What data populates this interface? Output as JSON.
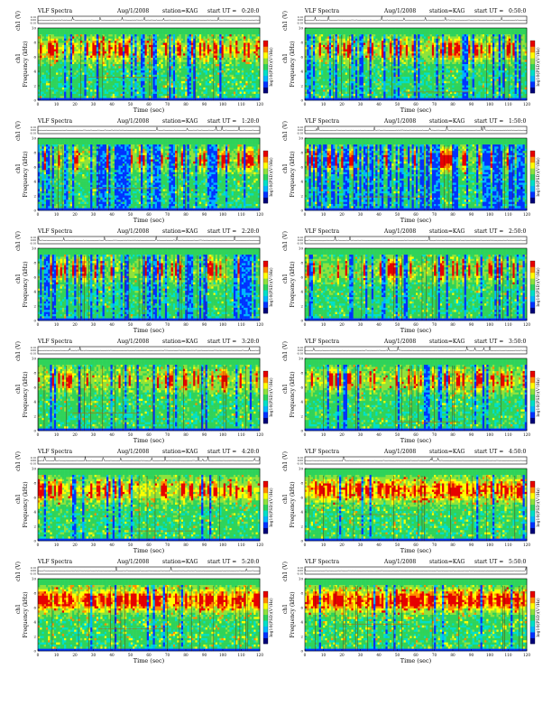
{
  "figure": {
    "type": "spectrogram-grid",
    "common": {
      "plot_title": "VLF Spectra",
      "date_label": "Aug/1/2008",
      "station_label": "station=KAG",
      "start_prefix": "start UT =",
      "xlabel": "Time (sec)",
      "ylabel_freq": "Frequency (kHz)",
      "ylabel_wave": "ch1 (V)",
      "ylabel_spec_ch": "ch1",
      "colorbar_label": "log10(PSD)(V²/Hz)",
      "x_ticks": [
        "0",
        "10",
        "20",
        "30",
        "40",
        "50",
        "60",
        "70",
        "80",
        "90",
        "100",
        "110",
        "120"
      ],
      "freq_ticks": [
        "0",
        "2",
        "4",
        "6",
        "8",
        "10"
      ],
      "wave_ticks": [
        "0.10",
        "0.00",
        "-0.10"
      ],
      "xlim": [
        0,
        120
      ],
      "ylim_freq": [
        0,
        10
      ],
      "colorbar_range": [
        -6,
        -2
      ],
      "colormap": [
        "#00007a",
        "#0032ff",
        "#00b4ff",
        "#00e0c8",
        "#2fd35a",
        "#8ee23c",
        "#ffff00",
        "#ff8a00",
        "#e60000"
      ]
    },
    "panels": [
      {
        "start_ut": "0:20:0"
      },
      {
        "start_ut": "0:50:0"
      },
      {
        "start_ut": "1:20:0"
      },
      {
        "start_ut": "1:50:0"
      },
      {
        "start_ut": "2:20:0"
      },
      {
        "start_ut": "2:50:0"
      },
      {
        "start_ut": "3:20:0"
      },
      {
        "start_ut": "3:50:0"
      },
      {
        "start_ut": "4:20:0"
      },
      {
        "start_ut": "4:50:0"
      },
      {
        "start_ut": "5:20:0"
      },
      {
        "start_ut": "5:50:0"
      }
    ]
  },
  "chart_data": [
    {
      "type": "heatmap",
      "title": "VLF Spectra Aug/1/2008 station=KAG start UT =0:20:0",
      "xlabel": "Time (sec)",
      "ylabel": "Frequency (kHz)",
      "xlim": [
        0,
        120
      ],
      "ylim": [
        0,
        10
      ],
      "activity": 0.55,
      "quiet": 0.15
    },
    {
      "type": "heatmap",
      "title": "VLF Spectra Aug/1/2008 station=KAG start UT =0:50:0",
      "xlabel": "Time (sec)",
      "ylabel": "Frequency (kHz)",
      "xlim": [
        0,
        120
      ],
      "ylim": [
        0,
        10
      ],
      "activity": 0.45,
      "quiet": 0.2
    },
    {
      "type": "heatmap",
      "title": "VLF Spectra Aug/1/2008 station=KAG start UT =1:20:0",
      "xlabel": "Time (sec)",
      "ylabel": "Frequency (kHz)",
      "xlim": [
        0,
        120
      ],
      "ylim": [
        0,
        10
      ],
      "activity": 0.35,
      "quiet": 0.45
    },
    {
      "type": "heatmap",
      "title": "VLF Spectra Aug/1/2008 station=KAG start UT =1:50:0",
      "xlabel": "Time (sec)",
      "ylabel": "Frequency (kHz)",
      "xlim": [
        0,
        120
      ],
      "ylim": [
        0,
        10
      ],
      "activity": 0.3,
      "quiet": 0.6
    },
    {
      "type": "heatmap",
      "title": "VLF Spectra Aug/1/2008 station=KAG start UT =2:20:0",
      "xlabel": "Time (sec)",
      "ylabel": "Frequency (kHz)",
      "xlim": [
        0,
        120
      ],
      "ylim": [
        0,
        10
      ],
      "activity": 0.3,
      "quiet": 0.35
    },
    {
      "type": "heatmap",
      "title": "VLF Spectra Aug/1/2008 station=KAG start UT =2:50:0",
      "xlabel": "Time (sec)",
      "ylabel": "Frequency (kHz)",
      "xlim": [
        0,
        120
      ],
      "ylim": [
        0,
        10
      ],
      "activity": 0.3,
      "quiet": 0.25
    },
    {
      "type": "heatmap",
      "title": "VLF Spectra Aug/1/2008 station=KAG start UT =3:20:0",
      "xlabel": "Time (sec)",
      "ylabel": "Frequency (kHz)",
      "xlim": [
        0,
        120
      ],
      "ylim": [
        0,
        10
      ],
      "activity": 0.4,
      "quiet": 0.15
    },
    {
      "type": "heatmap",
      "title": "VLF Spectra Aug/1/2008 station=KAG start UT =3:50:0",
      "xlabel": "Time (sec)",
      "ylabel": "Frequency (kHz)",
      "xlim": [
        0,
        120
      ],
      "ylim": [
        0,
        10
      ],
      "activity": 0.45,
      "quiet": 0.15
    },
    {
      "type": "heatmap",
      "title": "VLF Spectra Aug/1/2008 station=KAG start UT =4:20:0",
      "xlabel": "Time (sec)",
      "ylabel": "Frequency (kHz)",
      "xlim": [
        0,
        120
      ],
      "ylim": [
        0,
        10
      ],
      "activity": 0.55,
      "quiet": 0.1
    },
    {
      "type": "heatmap",
      "title": "VLF Spectra Aug/1/2008 station=KAG start UT =4:50:0",
      "xlabel": "Time (sec)",
      "ylabel": "Frequency (kHz)",
      "xlim": [
        0,
        120
      ],
      "ylim": [
        0,
        10
      ],
      "activity": 0.75,
      "quiet": 0.08
    },
    {
      "type": "heatmap",
      "title": "VLF Spectra Aug/1/2008 station=KAG start UT =5:20:0",
      "xlabel": "Time (sec)",
      "ylabel": "Frequency (kHz)",
      "xlim": [
        0,
        120
      ],
      "ylim": [
        0,
        10
      ],
      "activity": 0.85,
      "quiet": 0.05
    },
    {
      "type": "heatmap",
      "title": "VLF Spectra Aug/1/2008 station=KAG start UT =5:50:0",
      "xlabel": "Time (sec)",
      "ylabel": "Frequency (kHz)",
      "xlim": [
        0,
        120
      ],
      "ylim": [
        0,
        10
      ],
      "activity": 0.9,
      "quiet": 0.05
    }
  ]
}
